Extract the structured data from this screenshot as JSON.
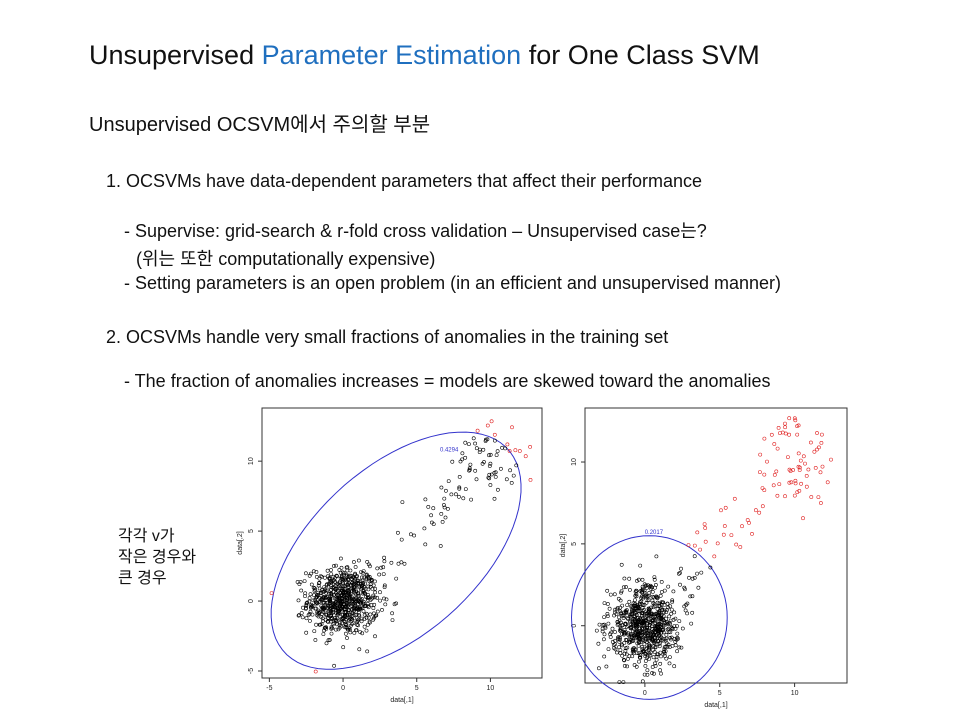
{
  "slide": {
    "title_prefix": "Unsupervised ",
    "title_accent": "Parameter Estimation",
    "title_suffix": " for One Class SVM",
    "subtitle": "Unsupervised OCSVM에서 주의할 부분",
    "point1": "1. OCSVMs have data-dependent parameters that affect their performance",
    "point1_sub1": "- Supervise: grid-search & r-fold cross validation – Unsupervised case는?",
    "point1_sub2": "(위는 또한 computationally expensive)",
    "point1_sub3": "- Setting parameters is an open problem (in an efficient and unsupervised manner)",
    "point2": "2. OCSVMs handle very small fractions of anomalies in the training set",
    "point2_sub1": "- The fraction of anomalies increases = models are skewed toward the anomalies",
    "side_note_line1": "각각 v가",
    "side_note_line2": "작은 경우와",
    "side_note_line3": "큰 경우"
  },
  "colors": {
    "accent": "#1f6fbf",
    "normal_points": "#000000",
    "anomaly_points": "#e02020",
    "contour": "#3333cc"
  },
  "chart_data": [
    {
      "type": "scatter",
      "xlabel": "data[,1]",
      "ylabel": "data[,2]",
      "xlim": [
        -5.5,
        13.5
      ],
      "ylim": [
        -5.5,
        13.8
      ],
      "xticks": [
        "-5",
        "0",
        "5",
        "10"
      ],
      "yticks": [
        "-5",
        "0",
        "5",
        "10"
      ],
      "contour_label": "0.4294",
      "contour": {
        "cx": 3.6,
        "cy": 3.6,
        "rx": 10.5,
        "ry": 5.8,
        "angle_deg": 45
      },
      "series": [
        {
          "cluster_center": [
            0,
            0
          ],
          "cluster_spread": 1.2,
          "count": 700
        },
        {
          "anomaly_center": [
            10,
            10
          ],
          "anomaly_spread": 1.3,
          "count": 60
        }
      ]
    },
    {
      "type": "scatter",
      "xlabel": "data[,1]",
      "ylabel": "data[,2]",
      "xlim": [
        -4,
        13.5
      ],
      "ylim": [
        -3.5,
        13.3
      ],
      "xticks": [
        "0",
        "5",
        "10"
      ],
      "yticks": [
        "0",
        "5",
        "10"
      ],
      "contour_label": "0.2017",
      "contour": {
        "cx": 0.3,
        "cy": 0.5,
        "rx": 5.2,
        "ry": 5.0,
        "angle_deg": 0
      },
      "series": [
        {
          "cluster_center": [
            0,
            0
          ],
          "cluster_spread": 1.2,
          "count": 700
        },
        {
          "anomaly_center": [
            10,
            10
          ],
          "anomaly_spread": 1.3,
          "count": 60
        }
      ]
    }
  ]
}
